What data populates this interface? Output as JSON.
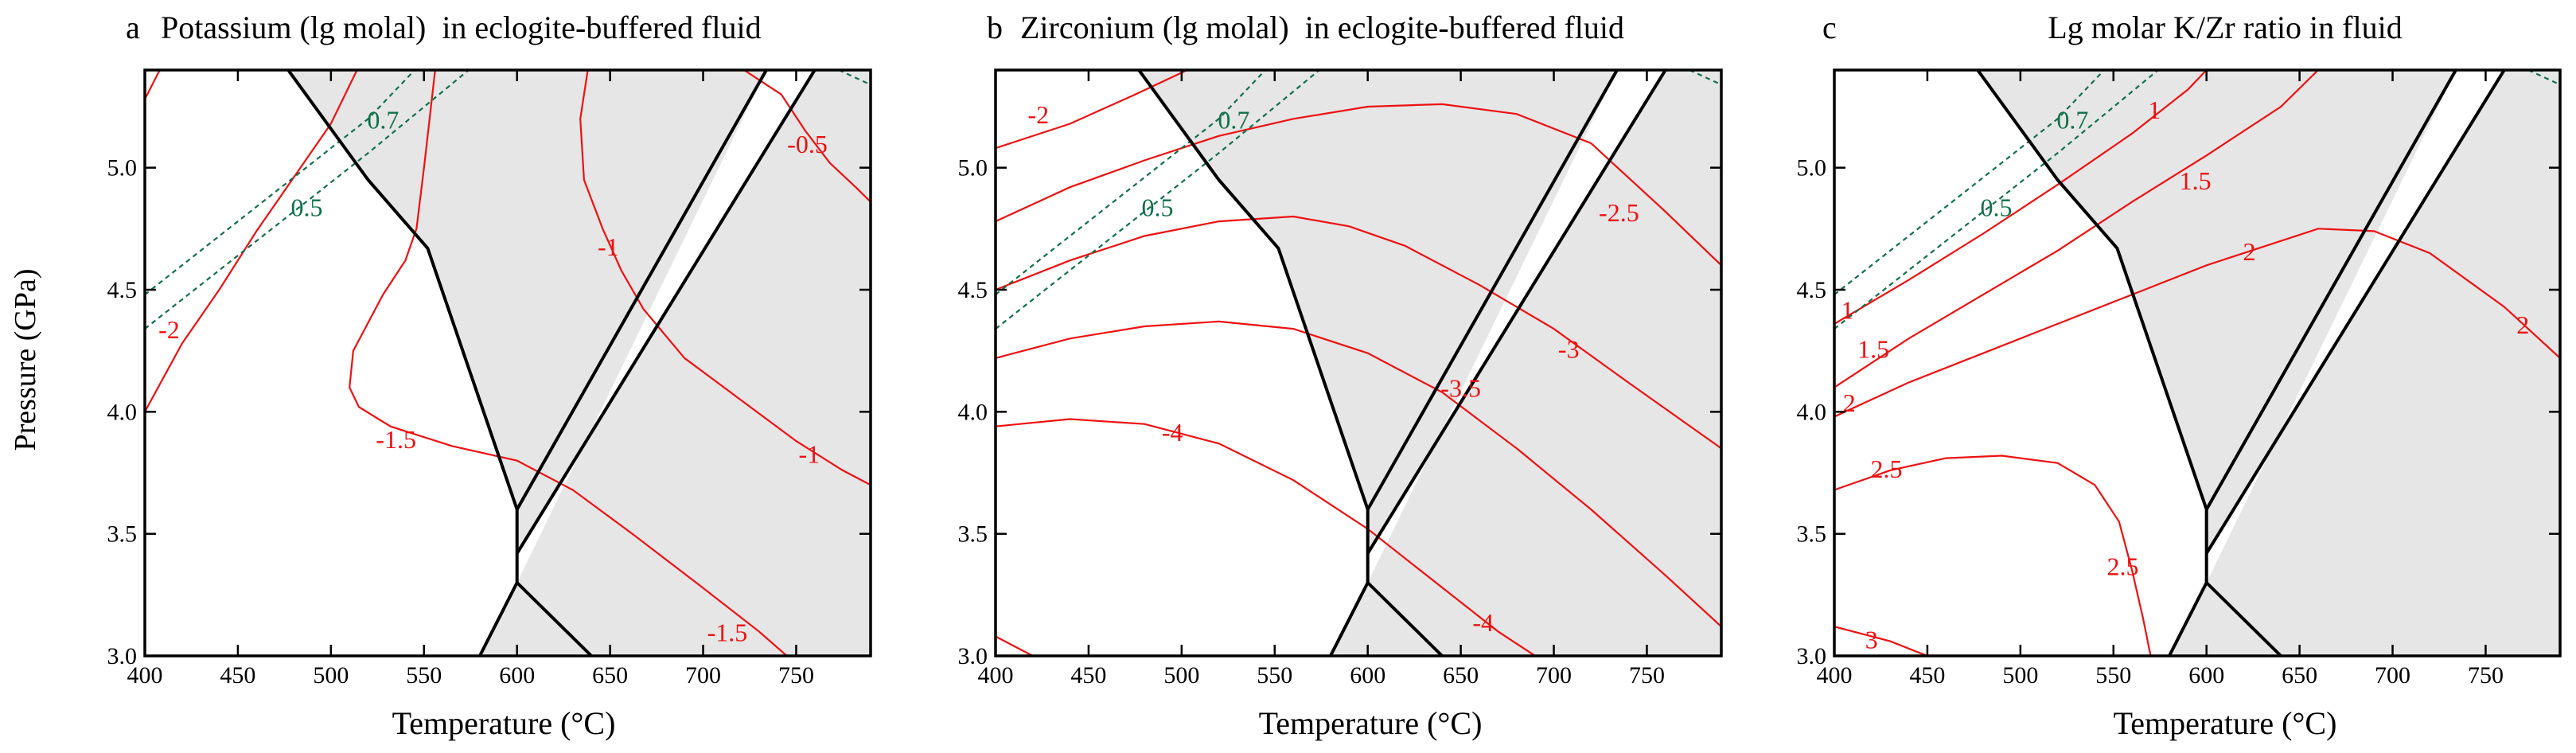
{
  "figure": {
    "y_label": "Pressure (GPa)",
    "x_label": "Temperature (°C)",
    "x_range": [
      400,
      790
    ],
    "y_range": [
      3.0,
      5.4
    ],
    "x_ticks": [
      400,
      450,
      500,
      550,
      600,
      650,
      700,
      750
    ],
    "y_ticks": [
      3.0,
      3.5,
      4.0,
      4.5,
      5.0
    ],
    "x_tick_labels": [
      "400",
      "450",
      "500",
      "550",
      "600",
      "650",
      "700",
      "750"
    ],
    "y_tick_labels": [
      "3.0",
      "3.5",
      "4.0",
      "4.5",
      "5.0"
    ],
    "colors": {
      "contour": "#ee1111",
      "isopleth": "#11704a",
      "field": "#e6e6e6",
      "boundary": "#000000"
    }
  },
  "chart_data": [
    {
      "type": "contour",
      "panel_letter": "a",
      "title": "Potassium (lg molal)  in eclogite-buffered fluid",
      "contours": [
        {
          "label": "-2",
          "points": [
            [
              400,
              4.0
            ],
            [
              420,
              4.28
            ],
            [
              440,
              4.5
            ],
            [
              460,
              4.74
            ],
            [
              480,
              4.96
            ],
            [
              500,
              5.18
            ],
            [
              514,
              5.4
            ]
          ]
        },
        {
          "label": "",
          "points": [
            [
              400,
              5.28
            ],
            [
              408,
              5.4
            ]
          ]
        },
        {
          "label": "-1.5",
          "points": [
            [
              556,
              5.4
            ],
            [
              550,
              5.0
            ],
            [
              546,
              4.75
            ],
            [
              540,
              4.62
            ],
            [
              528,
              4.48
            ],
            [
              512,
              4.25
            ],
            [
              510,
              4.1
            ],
            [
              515,
              4.02
            ],
            [
              532,
              3.94
            ],
            [
              565,
              3.86
            ],
            [
              600,
              3.8
            ],
            [
              630,
              3.68
            ],
            [
              662,
              3.5
            ],
            [
              698,
              3.29
            ],
            [
              730,
              3.1
            ],
            [
              745,
              3.0
            ]
          ]
        },
        {
          "label": "-1",
          "points": [
            [
              638,
              5.4
            ],
            [
              634,
              5.2
            ],
            [
              636,
              4.95
            ],
            [
              646,
              4.75
            ],
            [
              656,
              4.58
            ],
            [
              668,
              4.42
            ],
            [
              690,
              4.22
            ],
            [
              720,
              4.05
            ],
            [
              750,
              3.88
            ],
            [
              775,
              3.76
            ],
            [
              790,
              3.7
            ]
          ]
        },
        {
          "label": "-0.5",
          "points": [
            [
              722,
              5.4
            ],
            [
              742,
              5.3
            ],
            [
              755,
              5.15
            ],
            [
              768,
              5.02
            ],
            [
              782,
              4.92
            ],
            [
              790,
              4.86
            ]
          ]
        }
      ],
      "contour_labels": [
        {
          "text": "-2",
          "x": 413,
          "y": 4.34
        },
        {
          "text": "-1.5",
          "x": 535,
          "y": 3.89
        },
        {
          "text": "-1",
          "x": 649,
          "y": 4.68
        },
        {
          "text": "-1.5",
          "x": 713,
          "y": 3.1
        },
        {
          "text": "-1",
          "x": 757,
          "y": 3.83
        },
        {
          "text": "-0.5",
          "x": 756,
          "y": 5.1
        }
      ]
    },
    {
      "type": "contour",
      "panel_letter": "b",
      "title": "Zirconium (lg molal)  in eclogite-buffered fluid",
      "contours": [
        {
          "label": "-2",
          "points": [
            [
              400,
              5.08
            ],
            [
              440,
              5.18
            ],
            [
              475,
              5.3
            ],
            [
              503,
              5.4
            ]
          ]
        },
        {
          "label": "-2.5",
          "points": [
            [
              400,
              4.78
            ],
            [
              440,
              4.92
            ],
            [
              480,
              5.03
            ],
            [
              520,
              5.13
            ],
            [
              560,
              5.2
            ],
            [
              600,
              5.25
            ],
            [
              640,
              5.26
            ],
            [
              680,
              5.22
            ],
            [
              720,
              5.1
            ],
            [
              760,
              4.82
            ],
            [
              790,
              4.6
            ]
          ]
        },
        {
          "label": "-3",
          "points": [
            [
              400,
              4.5
            ],
            [
              440,
              4.62
            ],
            [
              480,
              4.72
            ],
            [
              520,
              4.78
            ],
            [
              560,
              4.8
            ],
            [
              590,
              4.76
            ],
            [
              620,
              4.68
            ],
            [
              660,
              4.52
            ],
            [
              700,
              4.34
            ],
            [
              740,
              4.12
            ],
            [
              790,
              3.85
            ]
          ]
        },
        {
          "label": "-3.5",
          "points": [
            [
              400,
              4.22
            ],
            [
              440,
              4.3
            ],
            [
              480,
              4.35
            ],
            [
              520,
              4.37
            ],
            [
              560,
              4.34
            ],
            [
              600,
              4.24
            ],
            [
              640,
              4.08
            ],
            [
              680,
              3.85
            ],
            [
              720,
              3.6
            ],
            [
              760,
              3.33
            ],
            [
              790,
              3.12
            ]
          ]
        },
        {
          "label": "-4",
          "points": [
            [
              400,
              3.94
            ],
            [
              440,
              3.97
            ],
            [
              480,
              3.95
            ],
            [
              520,
              3.87
            ],
            [
              560,
              3.72
            ],
            [
              600,
              3.52
            ],
            [
              640,
              3.28
            ],
            [
              670,
              3.1
            ],
            [
              690,
              3.0
            ]
          ]
        },
        {
          "label": "",
          "points": [
            [
              400,
              3.08
            ],
            [
              420,
              3.0
            ]
          ]
        }
      ],
      "contour_labels": [
        {
          "text": "-2",
          "x": 423,
          "y": 5.22
        },
        {
          "text": "-2.5",
          "x": 735,
          "y": 4.82
        },
        {
          "text": "-3",
          "x": 708,
          "y": 4.26
        },
        {
          "text": "-3.5",
          "x": 650,
          "y": 4.1
        },
        {
          "text": "-4",
          "x": 495,
          "y": 3.92
        },
        {
          "text": "-4",
          "x": 662,
          "y": 3.14
        }
      ]
    },
    {
      "type": "contour",
      "panel_letter": "c",
      "title": "Lg molar K/Zr ratio in fluid",
      "contours": [
        {
          "label": "1",
          "points": [
            [
              400,
              4.36
            ],
            [
              440,
              4.54
            ],
            [
              480,
              4.73
            ],
            [
              520,
              4.93
            ],
            [
              560,
              5.14
            ],
            [
              590,
              5.32
            ],
            [
              600,
              5.4
            ]
          ]
        },
        {
          "label": "1.5",
          "points": [
            [
              400,
              4.1
            ],
            [
              440,
              4.3
            ],
            [
              480,
              4.48
            ],
            [
              520,
              4.66
            ],
            [
              560,
              4.86
            ],
            [
              600,
              5.05
            ],
            [
              640,
              5.25
            ],
            [
              660,
              5.4
            ]
          ]
        },
        {
          "label": "2",
          "points": [
            [
              400,
              3.98
            ],
            [
              440,
              4.12
            ],
            [
              480,
              4.24
            ],
            [
              520,
              4.36
            ],
            [
              560,
              4.48
            ],
            [
              600,
              4.6
            ],
            [
              640,
              4.7
            ],
            [
              660,
              4.75
            ],
            [
              690,
              4.74
            ],
            [
              720,
              4.65
            ],
            [
              760,
              4.43
            ],
            [
              790,
              4.22
            ]
          ]
        },
        {
          "label": "2.5",
          "points": [
            [
              400,
              3.68
            ],
            [
              430,
              3.76
            ],
            [
              460,
              3.81
            ],
            [
              490,
              3.82
            ],
            [
              520,
              3.79
            ],
            [
              540,
              3.7
            ],
            [
              553,
              3.55
            ],
            [
              560,
              3.35
            ],
            [
              566,
              3.15
            ],
            [
              570,
              3.0
            ]
          ]
        },
        {
          "label": "3",
          "points": [
            [
              400,
              3.12
            ],
            [
              430,
              3.06
            ],
            [
              450,
              3.0
            ]
          ]
        }
      ],
      "contour_labels": [
        {
          "text": "1",
          "x": 407,
          "y": 4.42
        },
        {
          "text": "1",
          "x": 572,
          "y": 5.24
        },
        {
          "text": "1.5",
          "x": 421,
          "y": 4.26
        },
        {
          "text": "1.5",
          "x": 594,
          "y": 4.95
        },
        {
          "text": "2",
          "x": 408,
          "y": 4.04
        },
        {
          "text": "2",
          "x": 623,
          "y": 4.66
        },
        {
          "text": "2",
          "x": 770,
          "y": 4.36
        },
        {
          "text": "2.5",
          "x": 428,
          "y": 3.77
        },
        {
          "text": "2.5",
          "x": 555,
          "y": 3.37
        },
        {
          "text": "3",
          "x": 420,
          "y": 3.07
        }
      ]
    }
  ],
  "isopleths": [
    {
      "label": "0.7",
      "points": [
        [
          400,
          4.48
        ],
        [
          440,
          4.72
        ],
        [
          480,
          4.96
        ],
        [
          520,
          5.2
        ],
        [
          545,
          5.4
        ]
      ],
      "label_x": 528,
      "label_y": 5.2
    },
    {
      "label": "0.5",
      "points": [
        [
          400,
          4.34
        ],
        [
          440,
          4.58
        ],
        [
          480,
          4.82
        ],
        [
          520,
          5.06
        ],
        [
          574,
          5.4
        ]
      ],
      "label_x": 487,
      "label_y": 4.84
    },
    {
      "label": "",
      "points": [
        [
          773,
          5.4
        ],
        [
          790,
          5.34
        ]
      ]
    }
  ],
  "phase_field": {
    "fill": [
      [
        477,
        5.4
      ],
      [
        790,
        5.4
      ],
      [
        790,
        3.0
      ],
      [
        640,
        3.0
      ],
      [
        600,
        3.3
      ],
      [
        600,
        3.6
      ],
      [
        552,
        4.67
      ],
      [
        520,
        4.95
      ],
      [
        477,
        5.4
      ]
    ],
    "holes": [
      [
        [
          734,
          5.4
        ],
        [
          760,
          5.4
        ],
        [
          600,
          3.42
        ],
        [
          600,
          3.3
        ],
        [
          734,
          5.4
        ]
      ],
      [
        [
          600,
          3.3
        ],
        [
          640,
          3.0
        ],
        [
          580,
          3.0
        ],
        [
          600,
          3.3
        ]
      ]
    ],
    "boundaries": [
      [
        [
          477,
          5.4
        ],
        [
          520,
          4.95
        ],
        [
          552,
          4.67
        ],
        [
          600,
          3.6
        ],
        [
          600,
          3.42
        ],
        [
          600,
          3.3
        ],
        [
          580,
          3.0
        ]
      ],
      [
        [
          600,
          3.6
        ],
        [
          734,
          5.4
        ]
      ],
      [
        [
          600,
          3.42
        ],
        [
          760,
          5.4
        ]
      ],
      [
        [
          600,
          3.3
        ],
        [
          640,
          3.0
        ]
      ]
    ]
  }
}
